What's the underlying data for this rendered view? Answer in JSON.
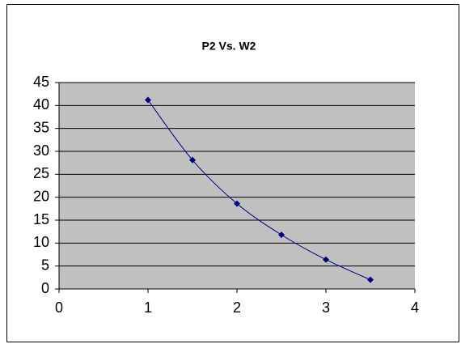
{
  "chart_data": {
    "type": "scatter",
    "title": "P2 Vs. W2",
    "x": [
      1,
      1.5,
      2,
      2.5,
      3,
      3.5
    ],
    "series": [
      {
        "name": "P2",
        "color": "#000080",
        "values": [
          41.2,
          28.1,
          18.6,
          11.8,
          6.4,
          2.0
        ]
      }
    ],
    "xlim": [
      0,
      4
    ],
    "xticks": [
      0,
      1,
      2,
      3,
      4
    ],
    "ylim": [
      0,
      45
    ],
    "yticks": [
      0,
      5,
      10,
      15,
      20,
      25,
      30,
      35,
      40,
      45
    ],
    "grid": true,
    "smooth": true,
    "plot_background": "#c0c0c0"
  }
}
